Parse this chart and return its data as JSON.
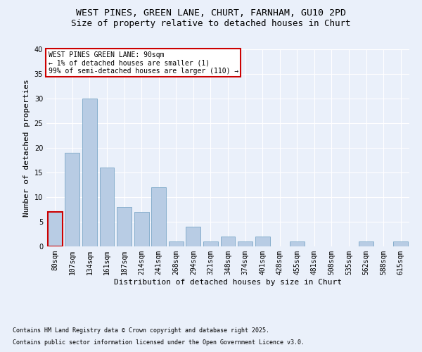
{
  "title_line1": "WEST PINES, GREEN LANE, CHURT, FARNHAM, GU10 2PD",
  "title_line2": "Size of property relative to detached houses in Churt",
  "xlabel": "Distribution of detached houses by size in Churt",
  "ylabel": "Number of detached properties",
  "categories": [
    "80sqm",
    "107sqm",
    "134sqm",
    "161sqm",
    "187sqm",
    "214sqm",
    "241sqm",
    "268sqm",
    "294sqm",
    "321sqm",
    "348sqm",
    "374sqm",
    "401sqm",
    "428sqm",
    "455sqm",
    "481sqm",
    "508sqm",
    "535sqm",
    "562sqm",
    "588sqm",
    "615sqm"
  ],
  "values": [
    7,
    19,
    30,
    16,
    8,
    7,
    12,
    1,
    4,
    1,
    2,
    1,
    2,
    0,
    1,
    0,
    0,
    0,
    1,
    0,
    1
  ],
  "bar_color": "#b8cce4",
  "bar_edge_color": "#7ba7c7",
  "highlight_bar_index": 0,
  "highlight_bar_edge_color": "#cc0000",
  "ylim": [
    0,
    40
  ],
  "yticks": [
    0,
    5,
    10,
    15,
    20,
    25,
    30,
    35,
    40
  ],
  "annotation_title": "WEST PINES GREEN LANE: 90sqm",
  "annotation_line2": "← 1% of detached houses are smaller (1)",
  "annotation_line3": "99% of semi-detached houses are larger (110) →",
  "annotation_box_color": "#ffffff",
  "annotation_box_edge_color": "#cc0000",
  "footer_line1": "Contains HM Land Registry data © Crown copyright and database right 2025.",
  "footer_line2": "Contains public sector information licensed under the Open Government Licence v3.0.",
  "background_color": "#eaf0fa",
  "plot_background_color": "#eaf0fa",
  "grid_color": "#ffffff",
  "title_fontsize": 9.5,
  "subtitle_fontsize": 9,
  "axis_label_fontsize": 8,
  "tick_fontsize": 7,
  "annotation_fontsize": 7,
  "footer_fontsize": 6
}
